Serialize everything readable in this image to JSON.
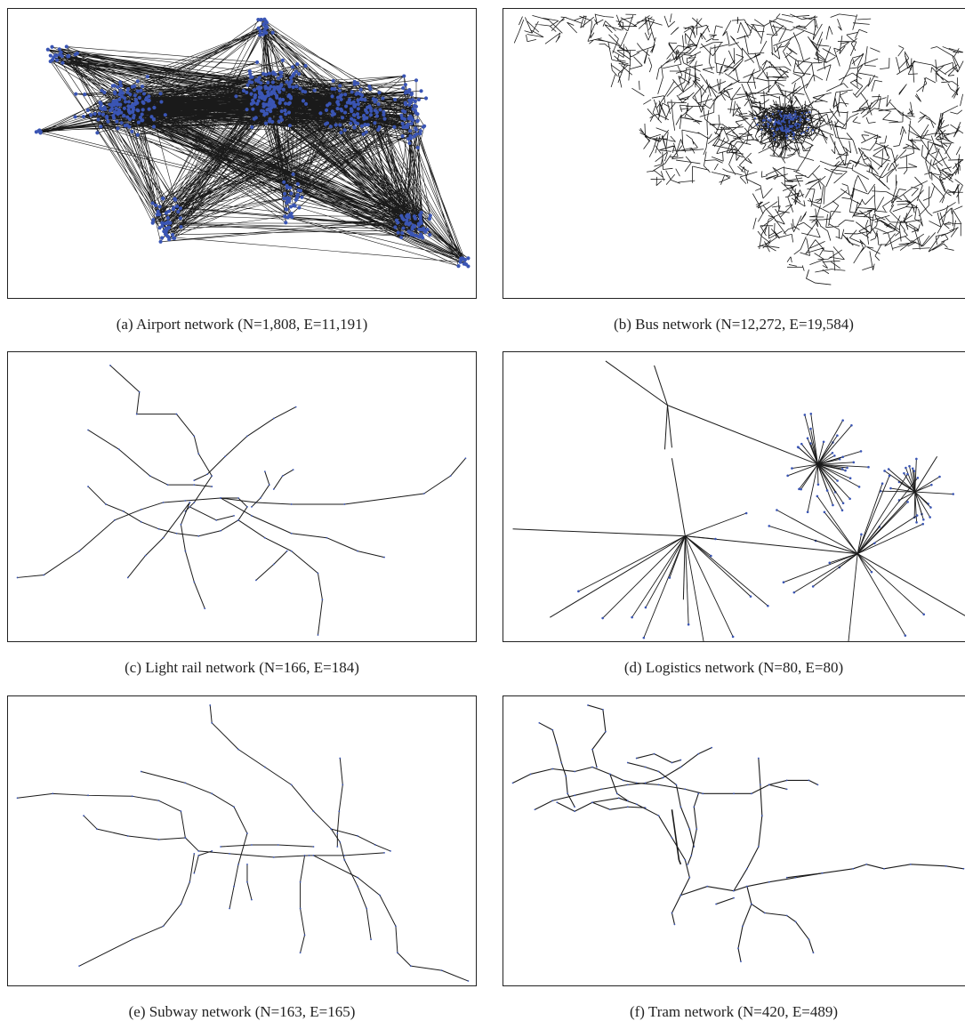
{
  "colors": {
    "edge": "#1a1a1a",
    "node": "#3a55b4",
    "border": "#222222"
  },
  "panels": [
    {
      "id": "a",
      "caption": "(a)  Airport network (N=1,808, E=11,191)",
      "type": "airport"
    },
    {
      "id": "b",
      "caption": "(b)  Bus network (N=12,272, E=19,584)",
      "type": "bus"
    },
    {
      "id": "c",
      "caption": "(c)  Light rail network (N=166, E=184)",
      "type": "lightrail"
    },
    {
      "id": "d",
      "caption": "(d)  Logistics network (N=80, E=80)",
      "type": "logistics"
    },
    {
      "id": "e",
      "caption": "(e)  Subway network (N=163, E=165)",
      "type": "subway"
    },
    {
      "id": "f",
      "caption": "(f)  Tram network (N=420, E=489)",
      "type": "tram"
    }
  ]
}
